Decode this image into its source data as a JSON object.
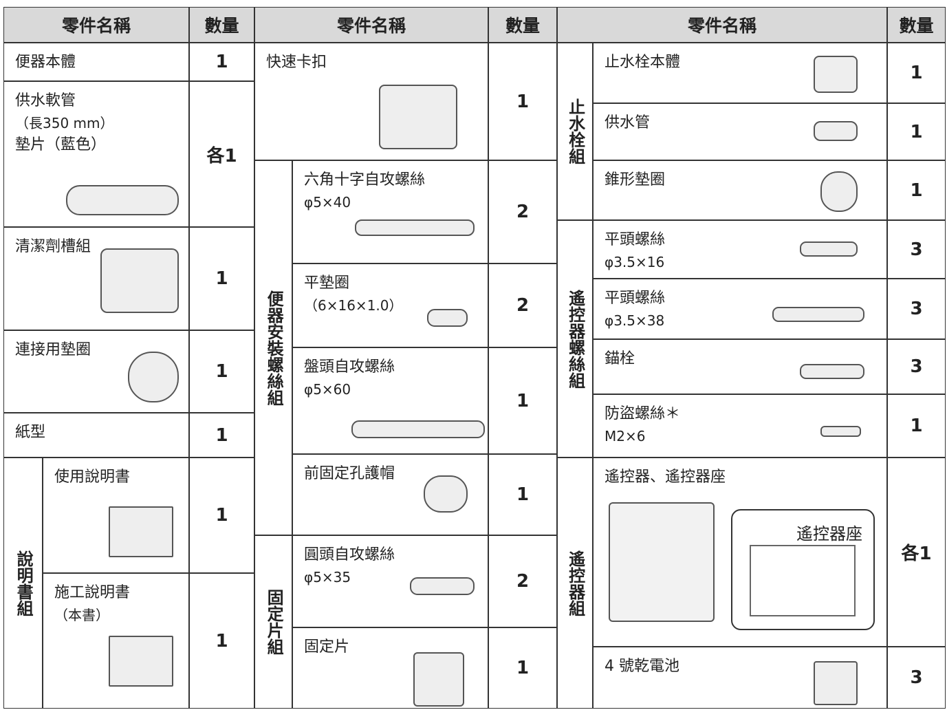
{
  "headers": [
    "零件名稱",
    "數量",
    "零件名稱",
    "數量",
    "零件名稱",
    "數量"
  ],
  "left": {
    "items": [
      {
        "name": "便器本體",
        "qty": 1
      },
      {
        "name": "供水軟管",
        "spec": "（長350 mm）",
        "extra": "墊片（藍色）",
        "qty": "各1"
      },
      {
        "name": "清潔劑槽組",
        "qty": 1
      },
      {
        "name": "連接用墊圈",
        "qty": 1
      },
      {
        "name": "紙型",
        "qty": 1
      },
      {
        "name": "使用說明書",
        "qty": 1
      },
      {
        "name": "施工說明書",
        "spec": "（本書）",
        "qty": 1
      }
    ],
    "group": "說明書組"
  },
  "middle": {
    "items": [
      {
        "name": "快速卡扣",
        "qty": 1
      },
      {
        "name": "六角十字自攻螺絲",
        "spec": "φ5×40",
        "qty": 2
      },
      {
        "name": "平墊圈",
        "spec": "（6×16×1.0）",
        "qty": 2
      },
      {
        "name": "盤頭自攻螺絲",
        "spec": "φ5×60",
        "qty": 1
      },
      {
        "name": "前固定孔護帽",
        "qty": 1
      },
      {
        "name": "圓頭自攻螺絲",
        "spec": "φ5×35",
        "qty": 2
      },
      {
        "name": "固定片",
        "qty": 1
      }
    ],
    "groups": [
      "便器安裝螺絲組",
      "固定片組"
    ]
  },
  "right": {
    "items": [
      {
        "name": "止水栓本體",
        "qty": 1
      },
      {
        "name": "供水管",
        "qty": 1
      },
      {
        "name": "錐形墊圈",
        "qty": 1
      },
      {
        "name": "平頭螺絲",
        "spec": "φ3.5×16",
        "qty": 3
      },
      {
        "name": "平頭螺絲",
        "spec": "φ3.5×38",
        "qty": 3
      },
      {
        "name": "錨栓",
        "qty": 3
      },
      {
        "name": "防盜螺絲＊",
        "spec": "M2×6",
        "qty": 1
      },
      {
        "name": "遙控器、遙控器座",
        "callout": "遙控器座",
        "qty": "各1"
      },
      {
        "name": "4 號乾電池",
        "qty": 3
      }
    ],
    "groups": [
      "止水栓組",
      "遙控器螺絲組",
      "遙控器組"
    ]
  }
}
